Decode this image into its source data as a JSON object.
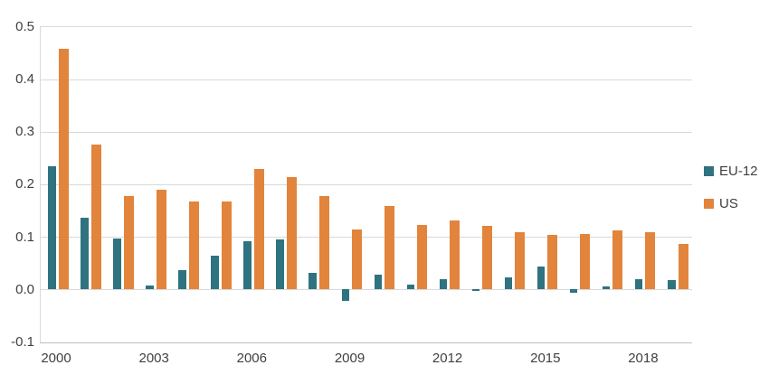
{
  "chart_data": {
    "type": "bar",
    "title": "",
    "xlabel": "",
    "ylabel": "",
    "categories": [
      2000,
      2001,
      2002,
      2003,
      2004,
      2005,
      2006,
      2007,
      2008,
      2009,
      2010,
      2011,
      2012,
      2013,
      2014,
      2015,
      2016,
      2017,
      2018,
      2019
    ],
    "series": [
      {
        "name": "EU-12",
        "color": "#2e737f",
        "values": [
          0.235,
          0.137,
          0.097,
          0.008,
          0.037,
          0.064,
          0.091,
          0.095,
          0.031,
          -0.022,
          0.028,
          0.009,
          0.02,
          -0.003,
          0.023,
          0.043,
          -0.006,
          0.005,
          0.02,
          0.017
        ]
      },
      {
        "name": "US",
        "color": "#e2843c",
        "values": [
          0.457,
          0.275,
          0.178,
          0.189,
          0.168,
          0.168,
          0.229,
          0.214,
          0.177,
          0.114,
          0.158,
          0.123,
          0.131,
          0.121,
          0.109,
          0.103,
          0.105,
          0.113,
          0.108,
          0.086
        ]
      }
    ],
    "ylim": [
      -0.1,
      0.5
    ],
    "yticks": [
      -0.1,
      0.0,
      0.1,
      0.2,
      0.3,
      0.4,
      0.5
    ],
    "xticks": [
      2000,
      2003,
      2006,
      2009,
      2012,
      2015,
      2018
    ],
    "grid": true,
    "legend_position": "right",
    "colors": {
      "gridline": "#d9d9d9",
      "axis_line": "#bfbfbf",
      "tick_text": "#404040"
    }
  }
}
